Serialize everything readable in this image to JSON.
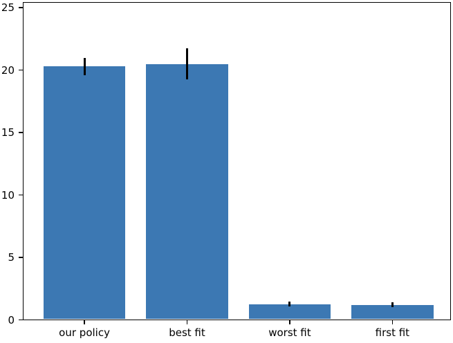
{
  "chart_data": {
    "type": "bar",
    "title": "",
    "xlabel": "",
    "ylabel": "",
    "categories": [
      "our policy",
      "best fit",
      "worst fit",
      "first fit"
    ],
    "values": [
      20.3,
      20.5,
      1.25,
      1.2
    ],
    "errors": [
      0.7,
      1.25,
      0.2,
      0.2
    ],
    "yticks": [
      0,
      5,
      10,
      15,
      20,
      25
    ],
    "ylim": [
      0,
      25.45
    ],
    "xlim": [
      -0.6,
      3.57
    ],
    "bar_width": 0.8,
    "grid": false,
    "legend": null,
    "colors": {
      "bar_fill": "#3c78b3",
      "error_bar": "#000000",
      "spine": "#000000",
      "tick_text": "#000000",
      "background": "#ffffff"
    }
  }
}
